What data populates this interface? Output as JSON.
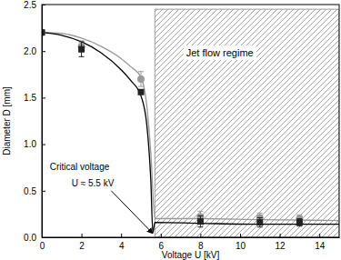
{
  "chart_data": {
    "type": "scatter",
    "x_label": "Voltage U [kV]",
    "y_label": "Diameter D [mm]",
    "xlim": [
      0,
      15
    ],
    "ylim": [
      0,
      2.5
    ],
    "xticks": [
      0,
      2,
      4,
      6,
      8,
      10,
      12,
      14
    ],
    "yticks": [
      {
        "value": 0,
        "label": "0.0"
      },
      0.5,
      {
        "value": 1,
        "label": "1.0"
      },
      1.5,
      {
        "value": 2,
        "label": "2.0"
      },
      2.5
    ],
    "grid": false,
    "series": [
      {
        "type": "line",
        "color": "#999999",
        "line_style": "solid",
        "x": [
          0,
          1,
          2,
          3,
          4,
          4.5,
          5,
          5.3,
          5.5,
          5.7,
          8,
          11,
          15
        ],
        "values": [
          2.2,
          2.19,
          2.14,
          2.05,
          1.92,
          1.83,
          1.72,
          1.4,
          0.9,
          0.2,
          0.2,
          0.19,
          0.18
        ]
      },
      {
        "type": "line",
        "color": "#000000",
        "line_style": "solid",
        "x": [
          0,
          1,
          2,
          3,
          4,
          4.5,
          5,
          5.3,
          5.5,
          5.6,
          5.7,
          8,
          11,
          15
        ],
        "values": [
          2.2,
          2.17,
          2.1,
          1.98,
          1.8,
          1.68,
          1.52,
          1.2,
          0.6,
          0.05,
          0.16,
          0.15,
          0.14,
          0.14
        ]
      },
      {
        "type": "scatter",
        "marker": "circle",
        "color": "#999999",
        "x": [
          0,
          2,
          5,
          8,
          11,
          13
        ],
        "values": [
          2.2,
          2.05,
          1.7,
          0.22,
          0.21,
          0.2
        ],
        "errors": [
          null,
          0.06,
          0.08,
          0.06,
          0.05,
          0.04
        ]
      },
      {
        "type": "scatter",
        "marker": "square",
        "color": "#222222",
        "x": [
          0,
          2,
          5,
          8,
          11,
          13
        ],
        "values": [
          2.2,
          2.02,
          1.56,
          0.17,
          0.16,
          0.16
        ],
        "errors": [
          null,
          0.08,
          null,
          0.06,
          0.05,
          0.04
        ]
      }
    ],
    "regions": [
      {
        "x0": 5.7,
        "x1": 15,
        "y0": 0,
        "y1": 2.45,
        "label": "Jet flow regime"
      }
    ],
    "annotations": [
      {
        "text": "Critical voltage"
      },
      {
        "text": "U ≈ 5.5 kV"
      }
    ]
  }
}
